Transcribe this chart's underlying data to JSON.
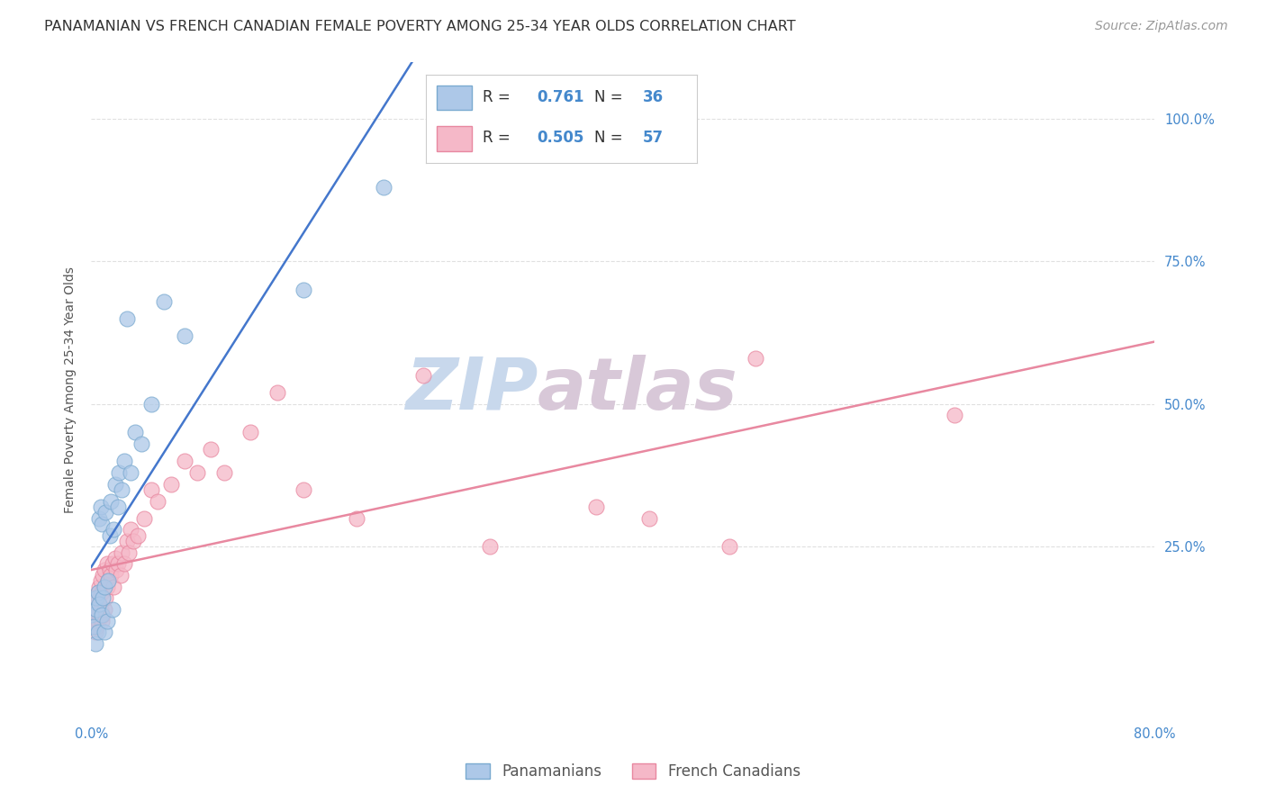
{
  "title": "PANAMANIAN VS FRENCH CANADIAN FEMALE POVERTY AMONG 25-34 YEAR OLDS CORRELATION CHART",
  "source": "Source: ZipAtlas.com",
  "ylabel": "Female Poverty Among 25-34 Year Olds",
  "xlim": [
    0.0,
    0.8
  ],
  "ylim": [
    -0.05,
    1.1
  ],
  "pan_R": 0.761,
  "pan_N": 36,
  "fc_R": 0.505,
  "fc_N": 57,
  "pan_color": "#adc8e8",
  "pan_edge_color": "#7aaad0",
  "fc_color": "#f5b8c8",
  "fc_edge_color": "#e888a0",
  "pan_line_color": "#4477cc",
  "fc_line_color": "#e888a0",
  "watermark_zip_color": "#c8d8ec",
  "watermark_atlas_color": "#d8c8d8",
  "background_color": "#ffffff",
  "grid_color": "#e0e0e0",
  "pan_scatter_x": [
    0.0,
    0.002,
    0.003,
    0.004,
    0.004,
    0.005,
    0.005,
    0.006,
    0.006,
    0.007,
    0.008,
    0.008,
    0.009,
    0.01,
    0.01,
    0.011,
    0.012,
    0.013,
    0.014,
    0.015,
    0.016,
    0.017,
    0.018,
    0.02,
    0.021,
    0.023,
    0.025,
    0.027,
    0.03,
    0.033,
    0.038,
    0.045,
    0.055,
    0.07,
    0.16,
    0.22
  ],
  "pan_scatter_y": [
    0.13,
    0.11,
    0.08,
    0.14,
    0.16,
    0.1,
    0.17,
    0.15,
    0.3,
    0.32,
    0.13,
    0.29,
    0.16,
    0.1,
    0.18,
    0.31,
    0.12,
    0.19,
    0.27,
    0.33,
    0.14,
    0.28,
    0.36,
    0.32,
    0.38,
    0.35,
    0.4,
    0.65,
    0.38,
    0.45,
    0.43,
    0.5,
    0.68,
    0.62,
    0.7,
    0.88
  ],
  "fc_scatter_x": [
    0.0,
    0.001,
    0.002,
    0.003,
    0.003,
    0.004,
    0.004,
    0.005,
    0.005,
    0.006,
    0.006,
    0.007,
    0.007,
    0.008,
    0.008,
    0.009,
    0.009,
    0.01,
    0.01,
    0.011,
    0.012,
    0.012,
    0.013,
    0.014,
    0.015,
    0.016,
    0.017,
    0.018,
    0.019,
    0.02,
    0.022,
    0.023,
    0.025,
    0.027,
    0.028,
    0.03,
    0.032,
    0.035,
    0.04,
    0.045,
    0.05,
    0.06,
    0.07,
    0.08,
    0.09,
    0.1,
    0.12,
    0.14,
    0.16,
    0.2,
    0.25,
    0.3,
    0.38,
    0.42,
    0.48,
    0.5,
    0.65
  ],
  "fc_scatter_y": [
    0.13,
    0.11,
    0.12,
    0.1,
    0.15,
    0.11,
    0.16,
    0.12,
    0.17,
    0.13,
    0.18,
    0.14,
    0.19,
    0.12,
    0.17,
    0.13,
    0.2,
    0.14,
    0.21,
    0.16,
    0.18,
    0.22,
    0.19,
    0.21,
    0.2,
    0.22,
    0.18,
    0.23,
    0.21,
    0.22,
    0.2,
    0.24,
    0.22,
    0.26,
    0.24,
    0.28,
    0.26,
    0.27,
    0.3,
    0.35,
    0.33,
    0.36,
    0.4,
    0.38,
    0.42,
    0.38,
    0.45,
    0.52,
    0.35,
    0.3,
    0.55,
    0.25,
    0.32,
    0.3,
    0.25,
    0.58,
    0.48
  ],
  "legend_label_pan": "Panamanians",
  "legend_label_fc": "French Canadians",
  "title_fontsize": 11.5,
  "axis_label_fontsize": 10,
  "tick_fontsize": 10.5,
  "source_fontsize": 10
}
